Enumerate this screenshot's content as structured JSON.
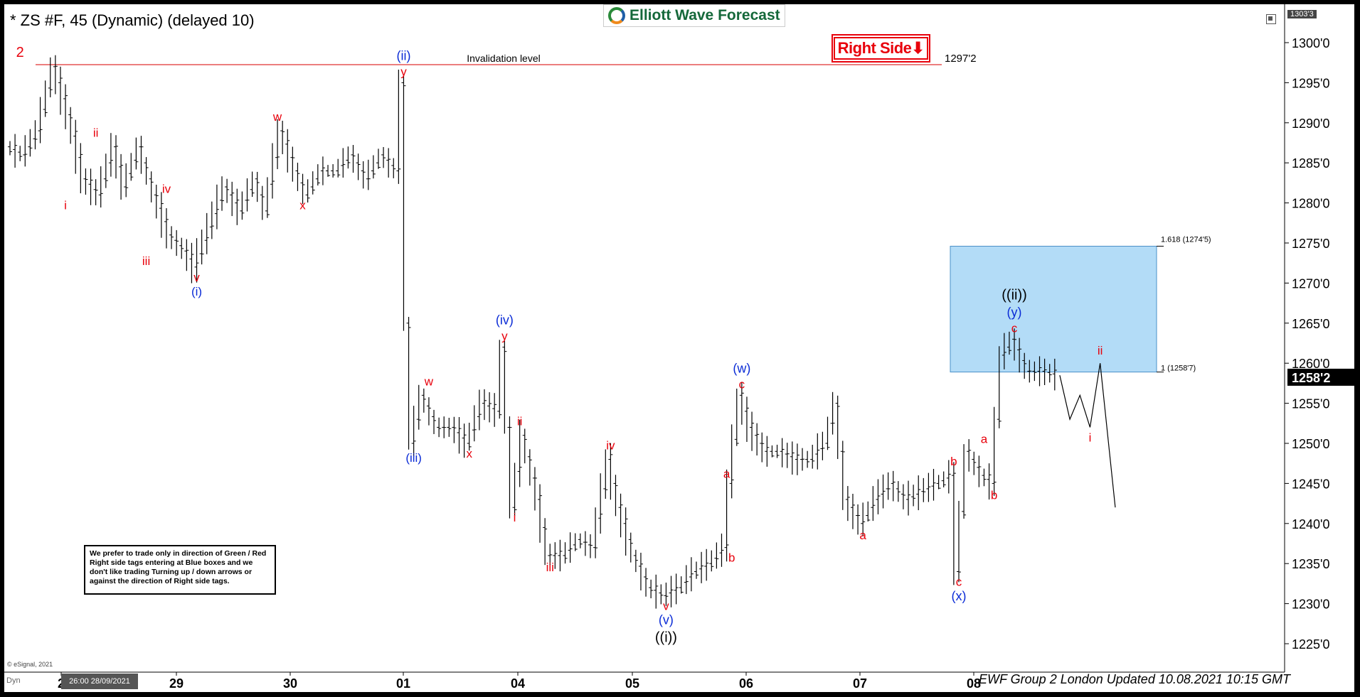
{
  "header": {
    "title": "* ZS #F, 45 (Dynamic) (delayed 10)",
    "logo_text": "Elliott Wave Forecast",
    "right_side_tag": "Right Side⬇"
  },
  "note_text": "We prefer to trade only in direction of Green / Red Right side tags entering at Blue boxes and we don't like trading Turning up / down arrows or against the direction of Right side tags.",
  "copyright": "© eSignal, 2021",
  "footer_text": "EWF Group 2 London Updated 10.08.2021 10:15 GMT",
  "dyn_label": "Dyn",
  "date_box": "26:00 28/09/2021",
  "top_price": "1303'3",
  "chart_data": {
    "type": "line",
    "instrument": "ZS #F",
    "yrange": [
      1220,
      1303.3
    ],
    "x_tick_labels": [
      "2",
      "29",
      "30",
      "01",
      "04",
      "05",
      "06",
      "07",
      "08"
    ],
    "y_ticks": [
      {
        "v": 1300,
        "label": "1300'0"
      },
      {
        "v": 1295,
        "label": "1295'0"
      },
      {
        "v": 1290,
        "label": "1290'0"
      },
      {
        "v": 1285,
        "label": "1285'0"
      },
      {
        "v": 1280,
        "label": "1280'0"
      },
      {
        "v": 1275,
        "label": "1275'0"
      },
      {
        "v": 1270,
        "label": "1270'0"
      },
      {
        "v": 1265,
        "label": "1265'0"
      },
      {
        "v": 1260,
        "label": "1260'0"
      },
      {
        "v": 1255,
        "label": "1255'0"
      },
      {
        "v": 1250,
        "label": "1250'0"
      },
      {
        "v": 1245,
        "label": "1245'0"
      },
      {
        "v": 1240,
        "label": "1240'0"
      },
      {
        "v": 1235,
        "label": "1235'0"
      },
      {
        "v": 1230,
        "label": "1230'0"
      },
      {
        "v": 1225,
        "label": "1225'0"
      }
    ],
    "current_price": {
      "v": 1258.25,
      "label": "1258'2"
    },
    "invalidation": {
      "v": 1297.25,
      "label": "Invalidation level",
      "price_label": "1297'2"
    },
    "blue_box": {
      "top": 1274.6,
      "bottom": 1258.9,
      "top_label": "1.618 (1274'5)",
      "bottom_label": "1 (1258'7)"
    },
    "price_path": [
      [
        0,
        1287
      ],
      [
        3,
        1286
      ],
      [
        6,
        1289
      ],
      [
        9,
        1297
      ],
      [
        12,
        1291
      ],
      [
        15,
        1283
      ],
      [
        18,
        1281
      ],
      [
        21,
        1287
      ],
      [
        23,
        1282
      ],
      [
        26,
        1287
      ],
      [
        29,
        1281
      ],
      [
        32,
        1276
      ],
      [
        35,
        1274
      ],
      [
        37,
        1272
      ],
      [
        40,
        1277
      ],
      [
        43,
        1282
      ],
      [
        46,
        1279
      ],
      [
        49,
        1283
      ],
      [
        51,
        1279
      ],
      [
        54,
        1289
      ],
      [
        57,
        1284
      ],
      [
        59,
        1281
      ],
      [
        62,
        1284
      ],
      [
        65,
        1284
      ],
      [
        68,
        1286
      ],
      [
        71,
        1283
      ],
      [
        74,
        1286
      ],
      [
        77,
        1284
      ],
      [
        78,
        1295
      ],
      [
        79,
        1265
      ],
      [
        80,
        1250
      ],
      [
        82,
        1256
      ],
      [
        85,
        1252
      ],
      [
        88,
        1252
      ],
      [
        91,
        1250
      ],
      [
        94,
        1255
      ],
      [
        97,
        1254
      ],
      [
        98,
        1262
      ],
      [
        100,
        1242
      ],
      [
        102,
        1251
      ],
      [
        105,
        1243
      ],
      [
        107,
        1236
      ],
      [
        110,
        1236
      ],
      [
        113,
        1238
      ],
      [
        116,
        1237
      ],
      [
        119,
        1248
      ],
      [
        121,
        1242
      ],
      [
        124,
        1236
      ],
      [
        127,
        1232
      ],
      [
        130,
        1231
      ],
      [
        133,
        1232
      ],
      [
        136,
        1234
      ],
      [
        139,
        1235
      ],
      [
        142,
        1237
      ],
      [
        143,
        1245
      ],
      [
        145,
        1256
      ],
      [
        147,
        1252
      ],
      [
        150,
        1249
      ],
      [
        153,
        1249
      ],
      [
        156,
        1248
      ],
      [
        159,
        1248
      ],
      [
        162,
        1250
      ],
      [
        164,
        1255
      ],
      [
        166,
        1243
      ],
      [
        169,
        1240
      ],
      [
        172,
        1243
      ],
      [
        175,
        1245
      ],
      [
        178,
        1243
      ],
      [
        181,
        1244
      ],
      [
        184,
        1245
      ],
      [
        187,
        1246
      ],
      [
        188,
        1234
      ],
      [
        190,
        1249
      ],
      [
        193,
        1246
      ],
      [
        195,
        1245
      ],
      [
        197,
        1261
      ],
      [
        199,
        1263
      ],
      [
        202,
        1259
      ],
      [
        205,
        1259
      ],
      [
        208,
        1258.5
      ]
    ],
    "projection_path": [
      [
        208,
        1258.5
      ],
      [
        210,
        1253
      ],
      [
        212,
        1256
      ],
      [
        214,
        1252
      ],
      [
        216,
        1260
      ],
      [
        219,
        1242
      ]
    ],
    "wave_labels": [
      {
        "t": 2,
        "v": 1297,
        "text": "2",
        "color": "red",
        "size": 20,
        "dy": -14
      },
      {
        "t": 11,
        "v": 1281,
        "text": "i",
        "color": "red",
        "size": 17,
        "dy": 14
      },
      {
        "t": 17,
        "v": 1287,
        "text": "ii",
        "color": "red",
        "size": 17,
        "dy": -14
      },
      {
        "t": 27,
        "v": 1274,
        "text": "iii",
        "color": "red",
        "size": 17,
        "dy": 14
      },
      {
        "t": 31,
        "v": 1280,
        "text": "iv",
        "color": "red",
        "size": 17,
        "dy": -14
      },
      {
        "t": 37,
        "v": 1272,
        "text": "v",
        "color": "red",
        "size": 17,
        "dy": 14
      },
      {
        "t": 37,
        "v": 1272,
        "text": "(i)",
        "color": "blue",
        "size": 17,
        "dy": 34
      },
      {
        "t": 53,
        "v": 1289,
        "text": "w",
        "color": "red",
        "size": 17,
        "dy": -14
      },
      {
        "t": 58,
        "v": 1281,
        "text": "x",
        "color": "red",
        "size": 17,
        "dy": 14
      },
      {
        "t": 78,
        "v": 1295,
        "text": "y",
        "color": "red",
        "size": 17,
        "dy": -10
      },
      {
        "t": 78,
        "v": 1295,
        "text": "(ii)",
        "color": "blue",
        "size": 18,
        "dy": -32
      },
      {
        "t": 80,
        "v": 1250,
        "text": "(iii)",
        "color": "blue",
        "size": 17,
        "dy": 20
      },
      {
        "t": 83,
        "v": 1256,
        "text": "w",
        "color": "red",
        "size": 17,
        "dy": -14
      },
      {
        "t": 91,
        "v": 1250,
        "text": "x",
        "color": "red",
        "size": 17,
        "dy": 14
      },
      {
        "t": 98,
        "v": 1262,
        "text": "y",
        "color": "red",
        "size": 17,
        "dy": -10
      },
      {
        "t": 98,
        "v": 1262,
        "text": "(iv)",
        "color": "blue",
        "size": 18,
        "dy": -32
      },
      {
        "t": 100,
        "v": 1242,
        "text": "i",
        "color": "red",
        "size": 17,
        "dy": 14
      },
      {
        "t": 101,
        "v": 1251,
        "text": "ii",
        "color": "red",
        "size": 17,
        "dy": -14
      },
      {
        "t": 107,
        "v": 1236,
        "text": "iii",
        "color": "red",
        "size": 17,
        "dy": 16
      },
      {
        "t": 119,
        "v": 1248,
        "text": "iv",
        "color": "red",
        "size": 17,
        "dy": -14
      },
      {
        "t": 130,
        "v": 1231,
        "text": "v",
        "color": "red",
        "size": 17,
        "dy": 14
      },
      {
        "t": 130,
        "v": 1231,
        "text": "(v)",
        "color": "blue",
        "size": 18,
        "dy": 34
      },
      {
        "t": 130,
        "v": 1231,
        "text": "((i))",
        "color": "black",
        "size": 20,
        "dy": 58
      },
      {
        "t": 142,
        "v": 1245,
        "text": "a",
        "color": "red",
        "size": 17,
        "dy": -8
      },
      {
        "t": 143,
        "v": 1237,
        "text": "b",
        "color": "red",
        "size": 17,
        "dy": 14
      },
      {
        "t": 145,
        "v": 1256,
        "text": "c",
        "color": "red",
        "size": 17,
        "dy": -10
      },
      {
        "t": 145,
        "v": 1256,
        "text": "(w)",
        "color": "blue",
        "size": 18,
        "dy": -32
      },
      {
        "t": 169,
        "v": 1240,
        "text": "a",
        "color": "red",
        "size": 17,
        "dy": 16
      },
      {
        "t": 187,
        "v": 1246,
        "text": "b",
        "color": "red",
        "size": 17,
        "dy": -14
      },
      {
        "t": 188,
        "v": 1234,
        "text": "c",
        "color": "red",
        "size": 17,
        "dy": 14
      },
      {
        "t": 188,
        "v": 1234,
        "text": "(x)",
        "color": "blue",
        "size": 18,
        "dy": 34
      },
      {
        "t": 193,
        "v": 1249,
        "text": "a",
        "color": "red",
        "size": 17,
        "dy": -12
      },
      {
        "t": 195,
        "v": 1245,
        "text": "b",
        "color": "red",
        "size": 17,
        "dy": 16
      },
      {
        "t": 199,
        "v": 1263,
        "text": "c",
        "color": "red",
        "size": 17,
        "dy": -10
      },
      {
        "t": 199,
        "v": 1263,
        "text": "(y)",
        "color": "blue",
        "size": 18,
        "dy": -32
      },
      {
        "t": 199,
        "v": 1263,
        "text": "((ii))",
        "color": "black",
        "size": 20,
        "dy": -56
      },
      {
        "t": 214,
        "v": 1252,
        "text": "i",
        "color": "red",
        "size": 17,
        "dy": 14
      },
      {
        "t": 216,
        "v": 1260,
        "text": "ii",
        "color": "red",
        "size": 17,
        "dy": -12
      }
    ]
  }
}
